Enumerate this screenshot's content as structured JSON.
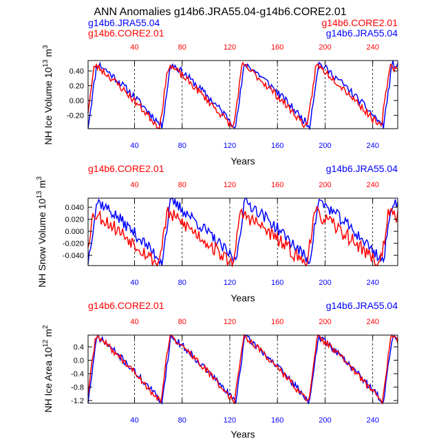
{
  "main_title": "ANN Anomalies g14b6.JRA55.04-g14b6.CORE2.01",
  "colors": {
    "jra": "#0000ff",
    "core": "#ff0000",
    "axis": "#000000"
  },
  "panel_top": {
    "ylabel": "NH Ice Volume 10",
    "ylabel_exp": "13",
    "ylabel_unit": " m",
    "ylabel_unit_exp": "3",
    "legend_left": [
      "g14b6.JRA55.04",
      "g14b6.CORE2.01"
    ],
    "legend_right": [
      "g14b6.CORE2.01",
      "g14b6.JRA55.04"
    ],
    "xlabel": "Years"
  },
  "panel_mid": {
    "ylabel": "NH Snow Volume 10",
    "ylabel_exp": "13",
    "ylabel_unit": " m",
    "ylabel_unit_exp": "3",
    "legend_left": [
      "g14b6.CORE2.01"
    ],
    "legend_right": [
      "g14b6.JRA55.04"
    ],
    "xlabel": "Years"
  },
  "panel_bot": {
    "ylabel": "NH Ice Area 10",
    "ylabel_exp": "12",
    "ylabel_unit": " m",
    "ylabel_unit_exp": "2",
    "legend_left": [
      "g14b6.CORE2.01"
    ],
    "legend_right": [
      "g14b6.JRA55.04"
    ],
    "xlabel": "Years"
  },
  "chart_data": [
    {
      "type": "line",
      "title": "NH Ice Volume",
      "xlabel": "Years",
      "xlim": [
        1,
        261
      ],
      "ylim": [
        -0.38,
        0.54
      ],
      "x_ticks": [
        40,
        80,
        120,
        160,
        200,
        240
      ],
      "x_tick_labels": [
        "40",
        "80",
        "120",
        "160",
        "200",
        "240"
      ],
      "top_x_ticks": [
        40,
        80,
        120,
        160,
        200,
        240
      ],
      "top_x_tick_labels": [
        "40",
        "80",
        "120",
        "160",
        "200",
        "240"
      ],
      "y_ticks": [
        0.4,
        0.2,
        0.0,
        -0.2
      ],
      "y_tick_labels": [
        "0.40",
        "0.20",
        "0.00",
        "-0.20"
      ],
      "vlines": [
        40,
        80,
        120,
        160,
        200,
        240
      ],
      "cycle_length": 62,
      "series": [
        {
          "name": "g14b6.JRA55.04",
          "color": "#0000ff",
          "peak": 0.5,
          "trough": -0.35,
          "noise": 0.05,
          "seed": 11,
          "phase": 0
        },
        {
          "name": "g14b6.CORE2.01",
          "color": "#ff0000",
          "peak": 0.48,
          "trough": -0.37,
          "noise": 0.05,
          "seed": 23,
          "phase": 2
        }
      ]
    },
    {
      "type": "line",
      "title": "NH Snow Volume",
      "xlabel": "Years",
      "xlim": [
        1,
        261
      ],
      "ylim": [
        -0.057,
        0.055
      ],
      "x_ticks": [
        40,
        80,
        120,
        160,
        200,
        240
      ],
      "x_tick_labels": [
        "40",
        "80",
        "120",
        "160",
        "200",
        "240"
      ],
      "top_x_ticks": [
        40,
        80,
        120,
        160,
        200,
        240
      ],
      "top_x_tick_labels": [
        "40",
        "80",
        "120",
        "160",
        "200",
        "240"
      ],
      "y_ticks": [
        0.04,
        0.02,
        0.0,
        -0.02,
        -0.04
      ],
      "y_tick_labels": [
        "0.040",
        "0.020",
        "0.000",
        "-0.020",
        "-0.040"
      ],
      "vlines": [
        40,
        80,
        120,
        160,
        200,
        240
      ],
      "cycle_length": 62,
      "series": [
        {
          "name": "g14b6.JRA55.04",
          "color": "#0000ff",
          "peak": 0.05,
          "trough": -0.05,
          "noise": 0.01,
          "seed": 37,
          "phase": 0
        },
        {
          "name": "g14b6.CORE2.01",
          "color": "#ff0000",
          "peak": 0.03,
          "trough": -0.055,
          "noise": 0.012,
          "seed": 53,
          "phase": 3
        }
      ]
    },
    {
      "type": "line",
      "title": "NH Ice Area",
      "xlabel": "Years",
      "xlim": [
        1,
        261
      ],
      "ylim": [
        -1.28,
        0.75
      ],
      "x_ticks": [
        40,
        80,
        120,
        160,
        200,
        240
      ],
      "x_tick_labels": [
        "40",
        "80",
        "120",
        "160",
        "200",
        "240"
      ],
      "top_x_ticks": [
        40,
        80,
        120,
        160,
        200,
        240
      ],
      "top_x_tick_labels": [
        "40",
        "80",
        "120",
        "160",
        "200",
        "240"
      ],
      "y_ticks": [
        0.4,
        0.0,
        -0.4,
        -0.8,
        -1.2
      ],
      "y_tick_labels": [
        "0.4",
        "0.0",
        "-0.4",
        "-0.8",
        "-1.2"
      ],
      "vlines": [
        40,
        80,
        120,
        160,
        200,
        240
      ],
      "cycle_length": 62,
      "series": [
        {
          "name": "g14b6.JRA55.04",
          "color": "#0000ff",
          "peak": 0.7,
          "trough": -1.25,
          "noise": 0.1,
          "seed": 71,
          "phase": 0
        },
        {
          "name": "g14b6.CORE2.01",
          "color": "#ff0000",
          "peak": 0.72,
          "trough": -1.25,
          "noise": 0.1,
          "seed": 89,
          "phase": 1
        }
      ]
    }
  ]
}
